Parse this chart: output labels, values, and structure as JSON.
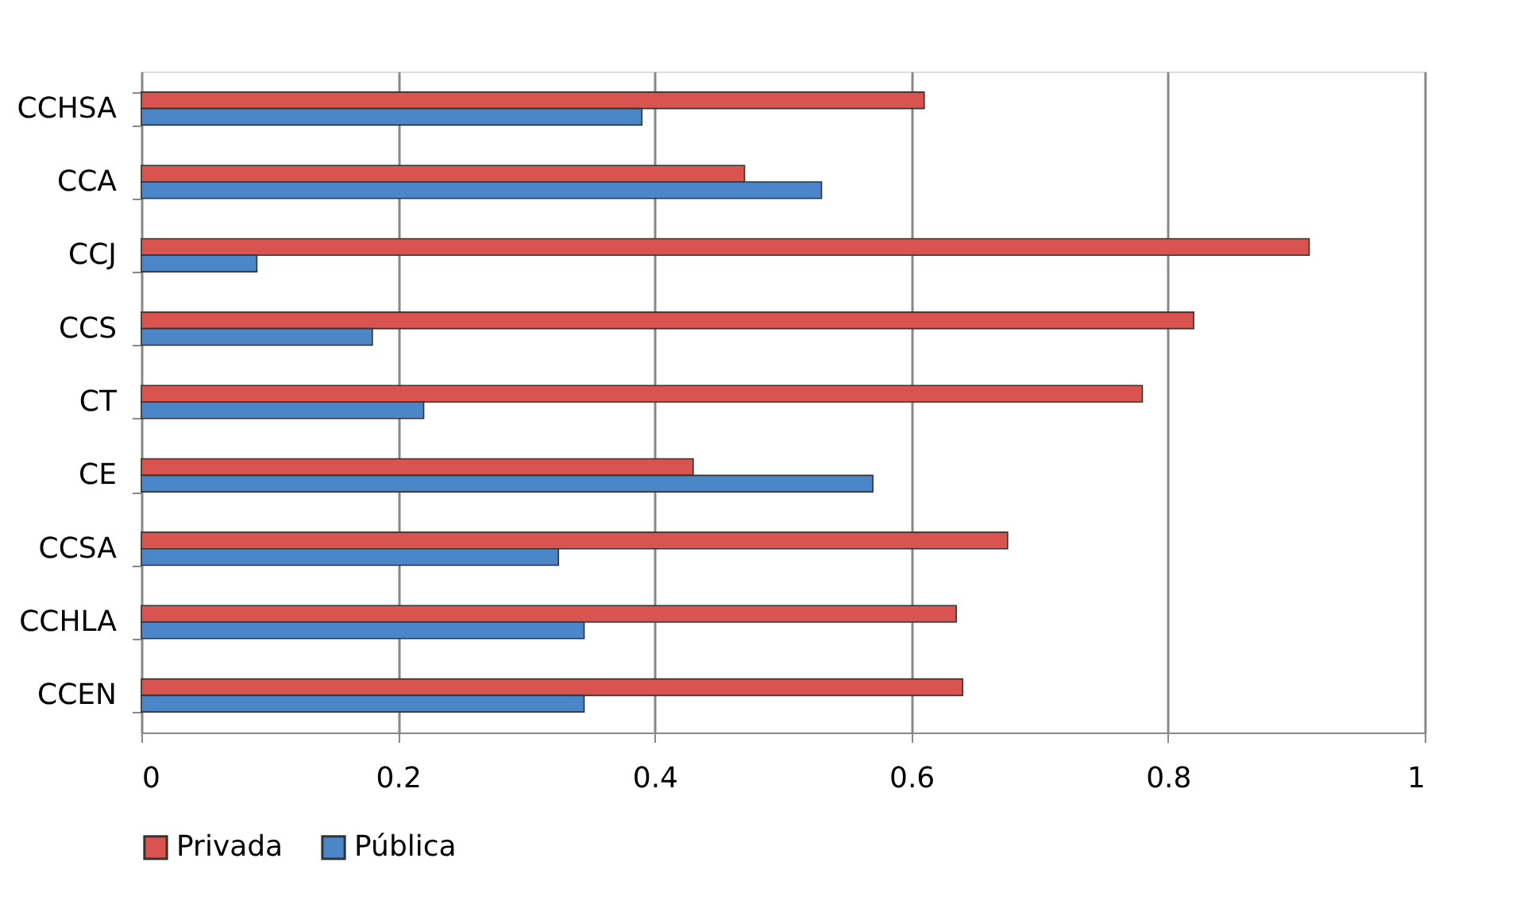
{
  "chart_data": {
    "type": "bar",
    "orientation": "horizontal",
    "categories": [
      "CCHSA",
      "CCA",
      "CCJ",
      "CCS",
      "CT",
      "CE",
      "CCSA",
      "CCHLA",
      "CCEN"
    ],
    "series": [
      {
        "name": "Privada",
        "color": "#d9534f",
        "values": [
          0.61,
          0.47,
          0.91,
          0.82,
          0.78,
          0.43,
          0.675,
          0.635,
          0.64
        ]
      },
      {
        "name": "Pública",
        "color": "#4a86c8",
        "values": [
          0.39,
          0.53,
          0.09,
          0.18,
          0.22,
          0.57,
          0.325,
          0.345,
          0.345
        ]
      }
    ],
    "xlim": [
      0,
      1
    ],
    "xticks": [
      0,
      0.2,
      0.4,
      0.6,
      0.8,
      1
    ],
    "grid": "x",
    "legend": "bottom"
  }
}
